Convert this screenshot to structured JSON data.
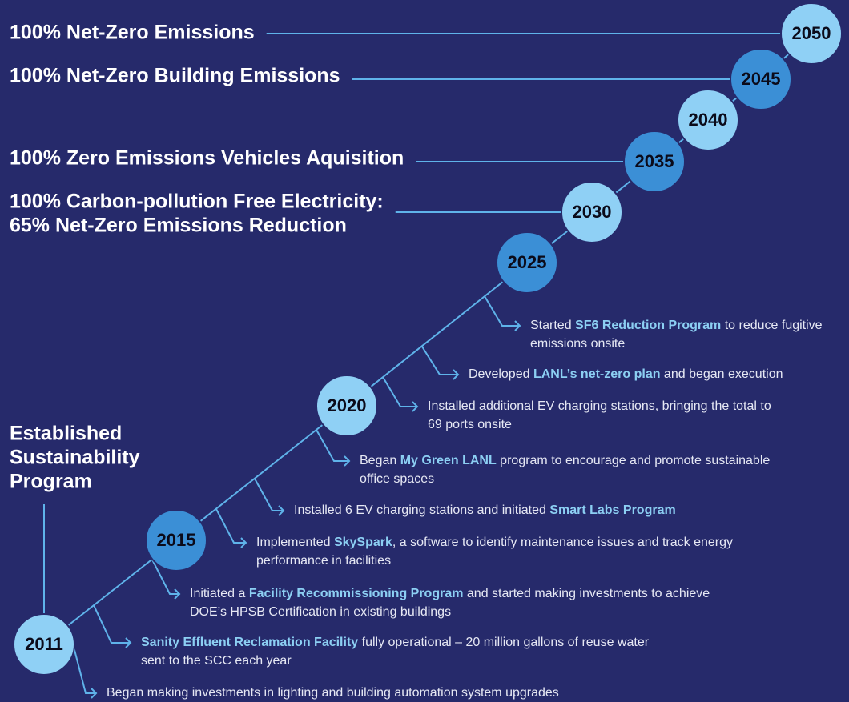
{
  "milestones": [
    "2011",
    "2015",
    "2020",
    "2025",
    "2030",
    "2035",
    "2040",
    "2045",
    "2050"
  ],
  "goals": [
    {
      "lines": [
        "100% Net-Zero Emissions"
      ]
    },
    {
      "lines": [
        "100% Net-Zero Building Emissions"
      ]
    },
    {
      "lines": [
        "100% Zero Emissions Vehicles Aquisition"
      ]
    },
    {
      "lines": [
        "100% Carbon-pollution Free Electricity:",
        "65% Net-Zero Emissions Reduction"
      ]
    }
  ],
  "origin": {
    "lines": [
      "Established",
      "Sustainability",
      "Program"
    ]
  },
  "events": [
    {
      "lines": [
        [
          "Began making investments in lighting and building automation system upgrades"
        ]
      ]
    },
    {
      "lines": [
        [
          {
            "text": "Sanity Effluent Reclamation Facility",
            "highlight": true
          },
          " fully operational – 20 million gallons of reuse water"
        ],
        [
          "sent to the SCC each year"
        ]
      ]
    },
    {
      "lines": [
        [
          "Initiated a ",
          {
            "text": "Facility Recommissioning Program",
            "highlight": true
          },
          " and started making investments to achieve"
        ],
        [
          "DOE’s HPSB Certification in existing buildings"
        ]
      ]
    },
    {
      "lines": [
        [
          "Implemented ",
          {
            "text": "SkySpark",
            "highlight": true
          },
          ", a software to identify maintenance issues and track energy"
        ],
        [
          "performance in facilities"
        ]
      ]
    },
    {
      "lines": [
        [
          "Installed 6 EV charging stations and initiated ",
          {
            "text": "Smart Labs Program",
            "highlight": true
          }
        ]
      ]
    },
    {
      "lines": [
        [
          "Began ",
          {
            "text": "My Green LANL",
            "highlight": true
          },
          " program to encourage and promote sustainable"
        ],
        [
          "office spaces"
        ]
      ]
    },
    {
      "lines": [
        [
          "Installed additional EV charging stations, bringing the total to"
        ],
        [
          "69 ports onsite"
        ]
      ]
    },
    {
      "lines": [
        [
          "Developed ",
          {
            "text": "LANL’s net-zero plan",
            "highlight": true
          },
          " and began execution"
        ]
      ]
    },
    {
      "lines": [
        [
          "Started ",
          {
            "text": "SF6 Reduction Program",
            "highlight": true
          },
          " to reduce fugitive"
        ],
        [
          "emissions onsite"
        ]
      ]
    }
  ]
}
